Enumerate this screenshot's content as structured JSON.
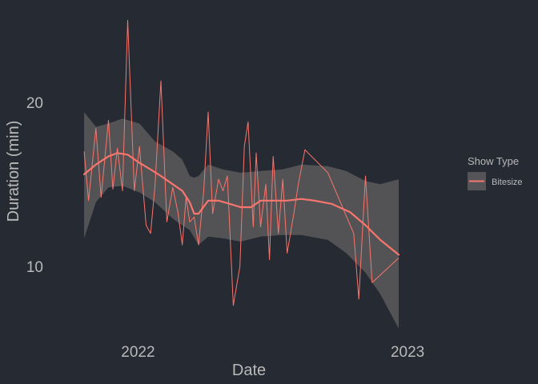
{
  "chart_data": {
    "type": "line",
    "xlabel": "Date",
    "ylabel": "Duration (min)",
    "x_ticks": [
      {
        "value": "2022-01-01",
        "label": "2022"
      },
      {
        "value": "2023-01-01",
        "label": "2023"
      }
    ],
    "y_ticks": [
      {
        "value": 10,
        "label": "10"
      },
      {
        "value": 20,
        "label": "20"
      }
    ],
    "xlim": [
      "2021-09-12",
      "2023-03-08"
    ],
    "ylim": [
      5.5,
      25.5
    ],
    "grid": false,
    "legend": {
      "title": "Show Type",
      "position": "right"
    },
    "colors": {
      "background": "#262a33",
      "series": "#f8766d",
      "band": "#555559",
      "text": "#b9b9b9"
    },
    "series": [
      {
        "name": "Bitesize",
        "points": [
          [
            "2021-10-20",
            17.0
          ],
          [
            "2021-10-26",
            14.0
          ],
          [
            "2021-11-05",
            18.4
          ],
          [
            "2021-11-12",
            14.2
          ],
          [
            "2021-11-22",
            18.9
          ],
          [
            "2021-11-28",
            14.7
          ],
          [
            "2021-12-04",
            17.2
          ],
          [
            "2021-12-11",
            14.6
          ],
          [
            "2021-12-18",
            25.0
          ],
          [
            "2021-12-27",
            14.6
          ],
          [
            "2022-01-03",
            17.3
          ],
          [
            "2022-01-12",
            12.5
          ],
          [
            "2022-01-18",
            12.0
          ],
          [
            "2022-01-24",
            14.9
          ],
          [
            "2022-02-01",
            21.3
          ],
          [
            "2022-02-09",
            12.7
          ],
          [
            "2022-02-17",
            14.8
          ],
          [
            "2022-02-24",
            13.3
          ],
          [
            "2022-03-02",
            11.3
          ],
          [
            "2022-03-07",
            14.2
          ],
          [
            "2022-03-12",
            12.7
          ],
          [
            "2022-03-18",
            13.0
          ],
          [
            "2022-03-24",
            11.3
          ],
          [
            "2022-03-31",
            14.6
          ],
          [
            "2022-04-06",
            19.4
          ],
          [
            "2022-04-12",
            13.2
          ],
          [
            "2022-04-20",
            15.3
          ],
          [
            "2022-04-26",
            14.6
          ],
          [
            "2022-05-02",
            15.5
          ],
          [
            "2022-05-10",
            7.6
          ],
          [
            "2022-05-19",
            10.0
          ],
          [
            "2022-05-25",
            17.3
          ],
          [
            "2022-05-30",
            18.8
          ],
          [
            "2022-06-06",
            12.4
          ],
          [
            "2022-06-10",
            16.9
          ],
          [
            "2022-06-16",
            12.4
          ],
          [
            "2022-06-23",
            15.0
          ],
          [
            "2022-06-28",
            10.4
          ],
          [
            "2022-07-03",
            16.7
          ],
          [
            "2022-07-10",
            12.0
          ],
          [
            "2022-07-16",
            15.3
          ],
          [
            "2022-07-22",
            10.8
          ],
          [
            "2022-07-31",
            13.2
          ],
          [
            "2022-08-06",
            15.0
          ],
          [
            "2022-08-15",
            17.1
          ],
          [
            "2022-09-15",
            15.7
          ],
          [
            "2022-10-20",
            12.0
          ],
          [
            "2022-10-27",
            8.0
          ],
          [
            "2022-11-05",
            15.5
          ],
          [
            "2022-11-14",
            9.0
          ],
          [
            "2022-12-20",
            10.5
          ]
        ],
        "trend": [
          [
            "2021-10-20",
            15.6
          ],
          [
            "2021-11-05",
            16.2
          ],
          [
            "2021-11-22",
            16.7
          ],
          [
            "2021-12-04",
            16.9
          ],
          [
            "2021-12-18",
            16.8
          ],
          [
            "2022-01-03",
            16.3
          ],
          [
            "2022-01-18",
            15.9
          ],
          [
            "2022-02-01",
            15.5
          ],
          [
            "2022-02-17",
            15.0
          ],
          [
            "2022-03-02",
            14.6
          ],
          [
            "2022-03-12",
            13.9
          ],
          [
            "2022-03-18",
            13.2
          ],
          [
            "2022-03-24",
            13.2
          ],
          [
            "2022-04-06",
            14.0
          ],
          [
            "2022-04-20",
            14.0
          ],
          [
            "2022-05-05",
            13.8
          ],
          [
            "2022-05-20",
            13.6
          ],
          [
            "2022-06-03",
            13.6
          ],
          [
            "2022-06-16",
            14.0
          ],
          [
            "2022-07-03",
            14.0
          ],
          [
            "2022-07-22",
            14.0
          ],
          [
            "2022-08-10",
            14.1
          ],
          [
            "2022-08-28",
            14.0
          ],
          [
            "2022-09-20",
            13.8
          ],
          [
            "2022-10-15",
            13.3
          ],
          [
            "2022-11-05",
            12.5
          ],
          [
            "2022-11-25",
            11.6
          ],
          [
            "2022-12-20",
            10.7
          ]
        ],
        "band_upper": [
          [
            "2021-10-20",
            19.4
          ],
          [
            "2021-11-05",
            18.5
          ],
          [
            "2021-11-22",
            18.7
          ],
          [
            "2021-12-11",
            19.0
          ],
          [
            "2022-01-03",
            18.7
          ],
          [
            "2022-01-24",
            17.6
          ],
          [
            "2022-02-17",
            17.0
          ],
          [
            "2022-03-02",
            16.5
          ],
          [
            "2022-03-12",
            15.5
          ],
          [
            "2022-03-18",
            15.4
          ],
          [
            "2022-03-24",
            15.5
          ],
          [
            "2022-04-06",
            16.2
          ],
          [
            "2022-04-26",
            15.9
          ],
          [
            "2022-05-20",
            15.7
          ],
          [
            "2022-06-16",
            15.8
          ],
          [
            "2022-07-16",
            15.9
          ],
          [
            "2022-08-10",
            16.2
          ],
          [
            "2022-09-15",
            16.1
          ],
          [
            "2022-10-10",
            15.8
          ],
          [
            "2022-11-05",
            15.2
          ],
          [
            "2022-11-25",
            15.0
          ],
          [
            "2022-12-20",
            15.3
          ]
        ],
        "band_lower": [
          [
            "2021-10-20",
            11.7
          ],
          [
            "2021-11-05",
            13.9
          ],
          [
            "2021-11-22",
            14.8
          ],
          [
            "2021-12-11",
            14.9
          ],
          [
            "2022-01-03",
            14.5
          ],
          [
            "2022-01-24",
            13.9
          ],
          [
            "2022-02-17",
            12.9
          ],
          [
            "2022-03-02",
            12.5
          ],
          [
            "2022-03-12",
            12.2
          ],
          [
            "2022-03-24",
            11.3
          ],
          [
            "2022-04-06",
            11.8
          ],
          [
            "2022-04-26",
            11.7
          ],
          [
            "2022-05-20",
            11.5
          ],
          [
            "2022-06-16",
            11.8
          ],
          [
            "2022-07-16",
            11.9
          ],
          [
            "2022-08-10",
            11.9
          ],
          [
            "2022-09-15",
            11.6
          ],
          [
            "2022-10-10",
            10.8
          ],
          [
            "2022-11-05",
            9.6
          ],
          [
            "2022-11-25",
            8.3
          ],
          [
            "2022-12-20",
            6.2
          ]
        ]
      }
    ]
  }
}
